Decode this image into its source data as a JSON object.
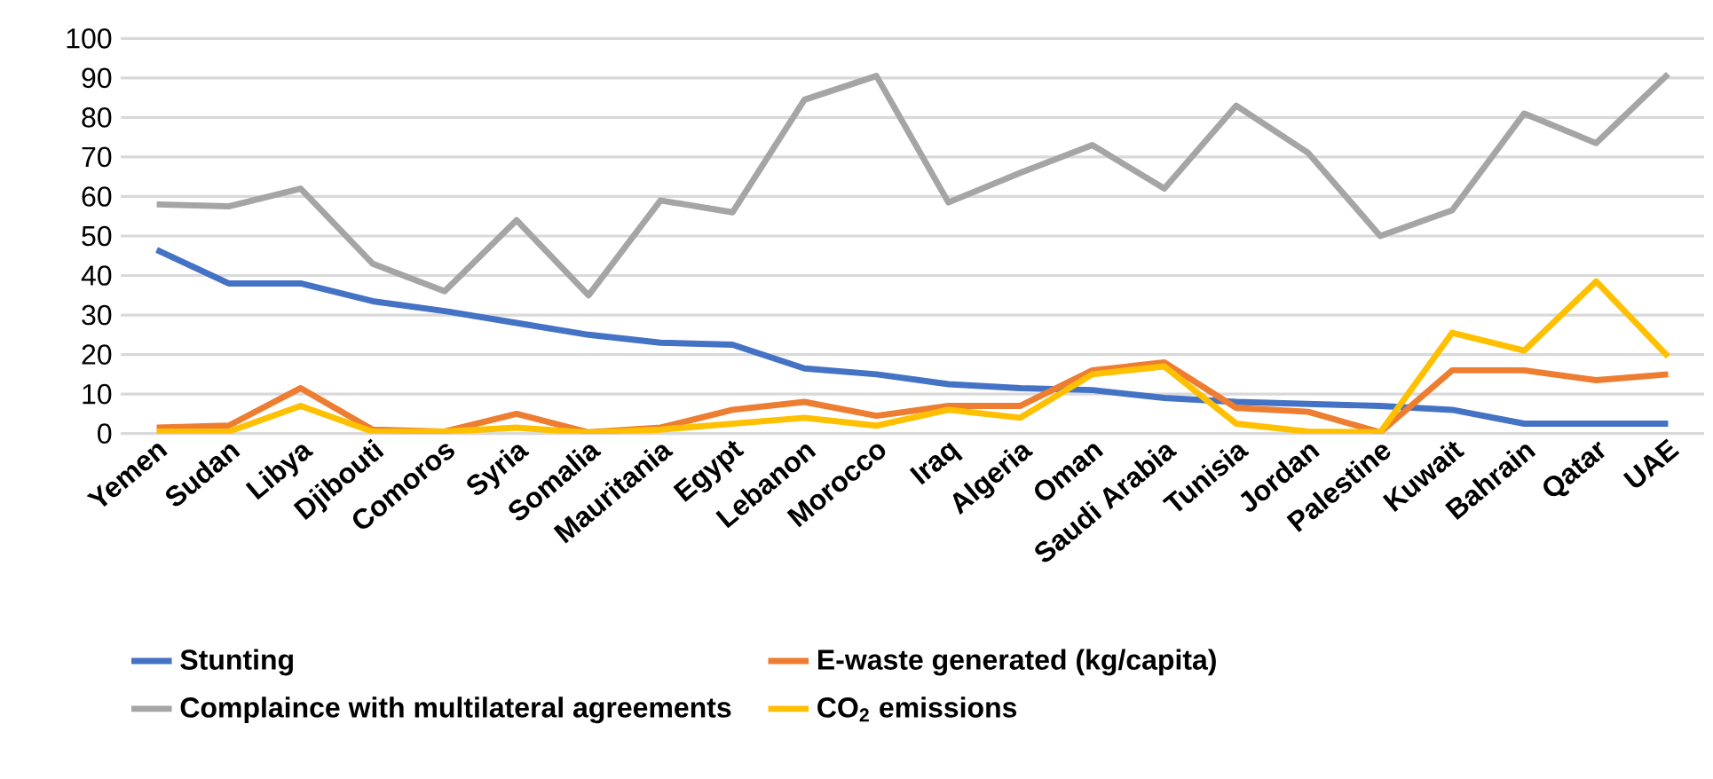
{
  "chart_data": {
    "type": "line",
    "categories": [
      "Yemen",
      "Sudan",
      "Libya",
      "Djibouti",
      "Comoros",
      "Syria",
      "Somalia",
      "Mauritania",
      "Egypt",
      "Lebanon",
      "Morocco",
      "Iraq",
      "Algeria",
      "Oman",
      "Saudi Arabia",
      "Tunisia",
      "Jordan",
      "Palestine",
      "Kuwait",
      "Bahrain",
      "Qatar",
      "UAE"
    ],
    "series": [
      {
        "name": "Stunting",
        "color": "#4472c4",
        "values": [
          46.5,
          38,
          38,
          33.5,
          31,
          28,
          25,
          23,
          22.5,
          16.5,
          15,
          12.5,
          11.5,
          11,
          9,
          8,
          7.5,
          7,
          6,
          2.5,
          2.5,
          2.5
        ]
      },
      {
        "name": "E-waste generated (kg/capita)",
        "color": "#ed7d31",
        "values": [
          1.5,
          2,
          11.5,
          1,
          0.5,
          5,
          0.3,
          1.5,
          6,
          8,
          4.5,
          7,
          7,
          16,
          18,
          6.5,
          5.5,
          0.3,
          16,
          16,
          13.5,
          15
        ]
      },
      {
        "name": "Complaince with multilateral agreements",
        "color": "#a5a5a5",
        "values": [
          58,
          57.5,
          62,
          43,
          36,
          54,
          35,
          59,
          56,
          84.5,
          90.5,
          58.5,
          66,
          73,
          62,
          83,
          71,
          50,
          56.5,
          81,
          73.5,
          91
        ]
      },
      {
        "name": "CO$_{2}$ emissions",
        "color": "#ffc000",
        "values": [
          0.5,
          0.5,
          7,
          0.5,
          0.5,
          1.5,
          0.2,
          1,
          2.5,
          4,
          2,
          6,
          4,
          15,
          17,
          2.5,
          0.5,
          0.3,
          25.5,
          21,
          38.5,
          19.5
        ]
      }
    ],
    "ylim": [
      0,
      100
    ],
    "yticks": [
      0,
      10,
      20,
      30,
      40,
      50,
      60,
      70,
      80,
      90,
      100
    ],
    "grid": "y",
    "legend": "bottom",
    "marker": "none",
    "line_style": "solid"
  }
}
